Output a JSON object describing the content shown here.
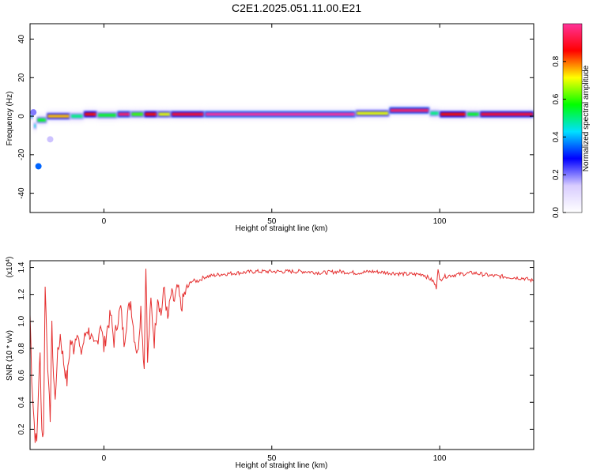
{
  "figure": {
    "title": "C2E1.2025.051.11.00.E21"
  },
  "colors": {
    "line": "#e53030",
    "axis": "#000000",
    "background": "#ffffff"
  },
  "chart_data": [
    {
      "type": "heatmap",
      "title": "C2E1.2025.051.11.00.E21",
      "xlabel": "Height of straight line (km)",
      "ylabel": "Frequency (Hz)",
      "xlim": [
        -22,
        128
      ],
      "ylim": [
        -50,
        48
      ],
      "xticks": [
        "0",
        "50",
        "100"
      ],
      "yticks": [
        "-40",
        "-20",
        "0",
        "20",
        "40"
      ],
      "colorbar": {
        "label": "Normalized spectral amplitude",
        "range": [
          0,
          1
        ],
        "ticks": [
          "0.0",
          "0.2",
          "0.4",
          "0.6",
          "0.8"
        ],
        "colors": [
          "#ffffff",
          "#d8ccff",
          "#0000ff",
          "#00e0ff",
          "#00ff00",
          "#ffff00",
          "#ff0000",
          "#ff3399"
        ]
      },
      "ridge": [
        {
          "x": [
            -22,
            -21
          ],
          "f": 0,
          "amp": 0.4
        },
        {
          "x": [
            -21,
            -20
          ],
          "f": -5,
          "amp": 0.45
        },
        {
          "x": [
            -20,
            -17
          ],
          "f": -2,
          "amp": 0.55
        },
        {
          "x": [
            -17,
            -10
          ],
          "f": 0,
          "amp": 0.75
        },
        {
          "x": [
            -10,
            -6
          ],
          "f": 0,
          "amp": 0.5
        },
        {
          "x": [
            -6,
            -2
          ],
          "f": 1,
          "amp": 0.85
        },
        {
          "x": [
            -2,
            4
          ],
          "f": 0.5,
          "amp": 0.55
        },
        {
          "x": [
            4,
            8
          ],
          "f": 1,
          "amp": 0.95
        },
        {
          "x": [
            8,
            12
          ],
          "f": 1,
          "amp": 0.6
        },
        {
          "x": [
            12,
            16
          ],
          "f": 1,
          "amp": 0.85
        },
        {
          "x": [
            16,
            20
          ],
          "f": 1,
          "amp": 0.7
        },
        {
          "x": [
            20,
            30
          ],
          "f": 1,
          "amp": 0.9
        },
        {
          "x": [
            30,
            75
          ],
          "f": 1,
          "amp": 1.0
        },
        {
          "x": [
            75,
            85
          ],
          "f": 1.5,
          "amp": 0.7
        },
        {
          "x": [
            85,
            97
          ],
          "f": 3,
          "amp": 0.95
        },
        {
          "x": [
            97,
            100
          ],
          "f": 1.5,
          "amp": 0.5
        },
        {
          "x": [
            100,
            108
          ],
          "f": 1,
          "amp": 0.85
        },
        {
          "x": [
            108,
            112
          ],
          "f": 1,
          "amp": 0.55
        },
        {
          "x": [
            112,
            128
          ],
          "f": 1,
          "amp": 0.9
        }
      ],
      "spots": [
        {
          "x": -19.5,
          "f": -26,
          "amp": 0.35
        },
        {
          "x": -16,
          "f": -12,
          "amp": 0.15
        },
        {
          "x": -21,
          "f": 2,
          "amp": 0.2
        }
      ]
    },
    {
      "type": "line",
      "xlabel": "Height of straight line (km)",
      "ylabel": "SNR (10 * v/v)",
      "yscale_note": "(x10^4)",
      "xlim": [
        -22,
        128
      ],
      "ylim": [
        0.05,
        1.45
      ],
      "xticks": [
        "0",
        "50",
        "100"
      ],
      "yticks": [
        "0.2",
        "0.4",
        "0.6",
        "0.8",
        "1.0",
        "1.2",
        "1.4"
      ],
      "series": [
        {
          "x": [
            -22,
            -21.5,
            -21,
            -20.5,
            -20,
            -19.5,
            -19,
            -18.5,
            -18,
            -17.5,
            -17,
            -16.5,
            -16,
            -15.5,
            -15,
            -14.5,
            -14,
            -13,
            -12,
            -11,
            -10,
            -9,
            -8,
            -7,
            -6,
            -5,
            -4,
            -3,
            -2,
            -1,
            0,
            1,
            2,
            3,
            4,
            5,
            6,
            7,
            8,
            9,
            10,
            11,
            12,
            12.5,
            13,
            14,
            15,
            16,
            17,
            18,
            19,
            20,
            21,
            22,
            23,
            24,
            25,
            26,
            28,
            30,
            35,
            40,
            45,
            50,
            55,
            60,
            65,
            70,
            75,
            80,
            85,
            90,
            95,
            98,
            99,
            99.5,
            100,
            101,
            103,
            106,
            110,
            115,
            120,
            125,
            128
          ],
          "y": [
            1.05,
            0.6,
            0.35,
            0.15,
            0.1,
            0.5,
            0.75,
            0.2,
            0.15,
            1.25,
            0.9,
            0.5,
            0.3,
            0.95,
            0.6,
            0.4,
            0.7,
            0.9,
            0.7,
            0.55,
            0.85,
            0.8,
            0.95,
            0.75,
            0.85,
            0.95,
            0.9,
            0.8,
            0.85,
            1.0,
            0.8,
            0.95,
            1.05,
            0.85,
            1.0,
            1.1,
            0.85,
            1.05,
            1.15,
            0.9,
            0.75,
            1.1,
            0.65,
            1.45,
            0.7,
            1.15,
            0.85,
            1.2,
            1.05,
            1.25,
            1.0,
            1.2,
            1.15,
            1.25,
            1.1,
            1.2,
            1.25,
            1.3,
            1.3,
            1.33,
            1.35,
            1.36,
            1.37,
            1.37,
            1.37,
            1.37,
            1.36,
            1.37,
            1.36,
            1.37,
            1.36,
            1.35,
            1.35,
            1.3,
            1.25,
            1.4,
            1.3,
            1.33,
            1.34,
            1.35,
            1.36,
            1.34,
            1.33,
            1.32,
            1.3
          ]
        }
      ]
    }
  ]
}
